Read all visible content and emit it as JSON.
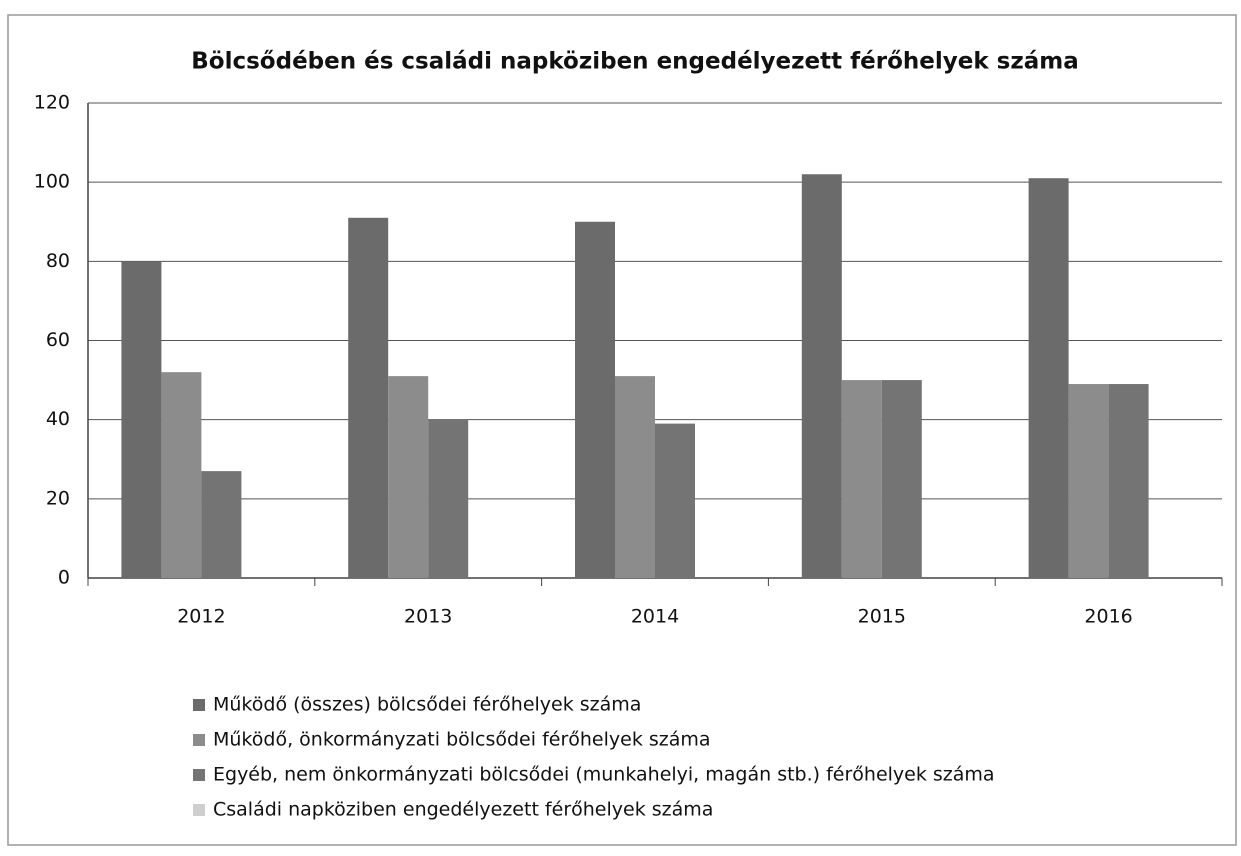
{
  "chart_data": {
    "type": "bar",
    "title": "Bölcsődében és családi napköziben engedélyezett férőhelyek száma",
    "categories": [
      "2012",
      "2013",
      "2014",
      "2015",
      "2016"
    ],
    "series": [
      {
        "name": "Működő (összes) bölcsődei férőhelyek száma",
        "color": "#6b6b6b",
        "values": [
          80,
          91,
          90,
          102,
          101
        ]
      },
      {
        "name": "Működő, önkormányzati bölcsődei férőhelyek száma",
        "color": "#8c8c8c",
        "values": [
          52,
          51,
          51,
          50,
          49
        ]
      },
      {
        "name": "Egyéb, nem önkormányzati bölcsődei (munkahelyi, magán stb.) férőhelyek száma",
        "color": "#747474",
        "values": [
          27,
          40,
          39,
          50,
          49
        ]
      },
      {
        "name": "Családi napköziben engedélyezett férőhelyek száma",
        "color": "#cfcfcf",
        "values": [
          0,
          0,
          0,
          0,
          0
        ]
      }
    ],
    "ylim": [
      0,
      120
    ],
    "yticks": [
      0,
      20,
      40,
      60,
      80,
      100,
      120
    ],
    "grid": true,
    "legend": "bottom"
  }
}
